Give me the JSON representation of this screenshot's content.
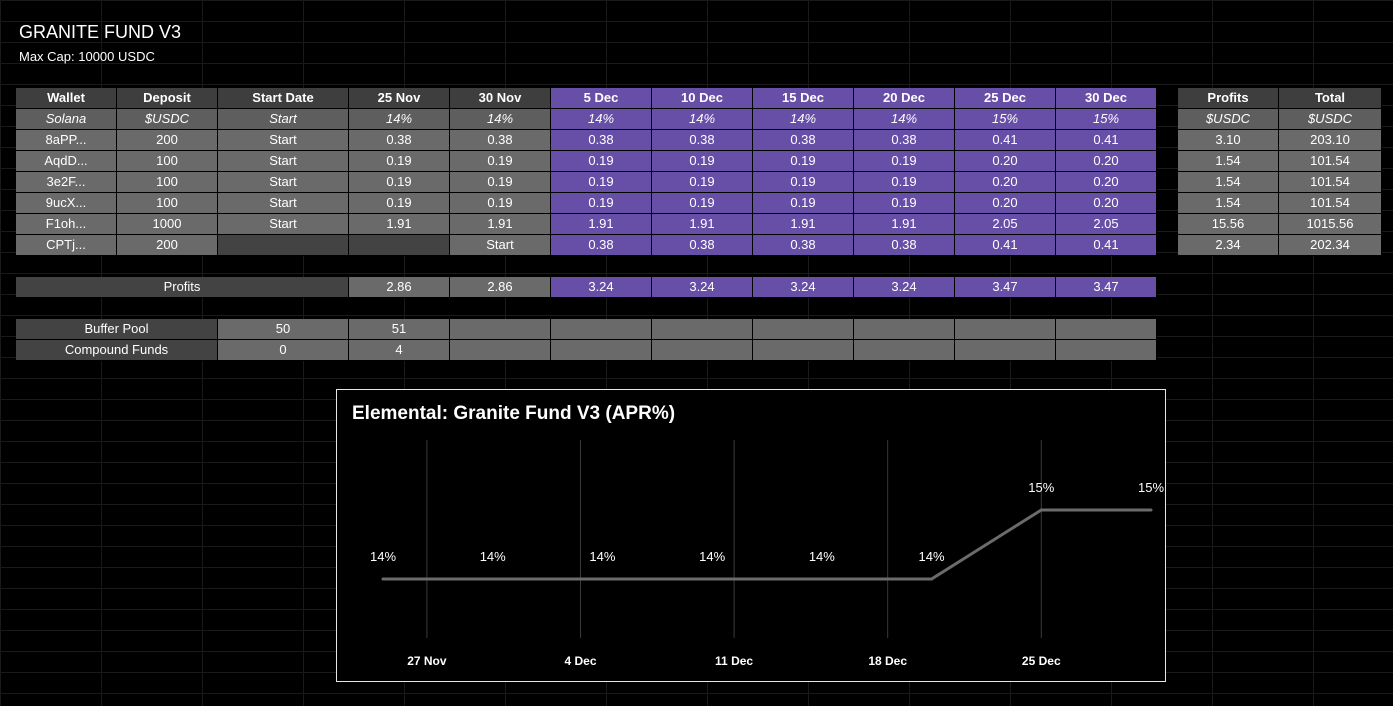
{
  "header": {
    "title": "GRANITE FUND V3",
    "subtitle": "Max Cap: 10000 USDC"
  },
  "table": {
    "columns": [
      "Wallet",
      "Deposit",
      "Start Date",
      "25 Nov",
      "30 Nov",
      "5 Dec",
      "10 Dec",
      "15 Dec",
      "20 Dec",
      "25 Dec",
      "30 Dec"
    ],
    "subheader": [
      "Solana",
      "$USDC",
      "Start",
      "14%",
      "14%",
      "14%",
      "14%",
      "14%",
      "14%",
      "15%",
      "15%"
    ],
    "rows": [
      [
        "8aPP...",
        "200",
        "Start",
        "0.38",
        "0.38",
        "0.38",
        "0.38",
        "0.38",
        "0.38",
        "0.41",
        "0.41"
      ],
      [
        "AqdD...",
        "100",
        "Start",
        "0.19",
        "0.19",
        "0.19",
        "0.19",
        "0.19",
        "0.19",
        "0.20",
        "0.20"
      ],
      [
        "3e2F...",
        "100",
        "Start",
        "0.19",
        "0.19",
        "0.19",
        "0.19",
        "0.19",
        "0.19",
        "0.20",
        "0.20"
      ],
      [
        "9ucX...",
        "100",
        "Start",
        "0.19",
        "0.19",
        "0.19",
        "0.19",
        "0.19",
        "0.19",
        "0.20",
        "0.20"
      ],
      [
        "F1oh...",
        "1000",
        "Start",
        "1.91",
        "1.91",
        "1.91",
        "1.91",
        "1.91",
        "1.91",
        "2.05",
        "2.05"
      ],
      [
        "CPTj...",
        "200",
        "",
        "",
        "Start",
        "0.38",
        "0.38",
        "0.38",
        "0.38",
        "0.41",
        "0.41"
      ]
    ],
    "profits_label": "Profits",
    "profits_values": [
      "2.86",
      "2.86",
      "3.24",
      "3.24",
      "3.24",
      "3.24",
      "3.47",
      "3.47"
    ],
    "buffer_pool": {
      "label": "Buffer Pool",
      "values": [
        "50",
        "51"
      ]
    },
    "compound_funds": {
      "label": "Compound Funds",
      "values": [
        "0",
        "4"
      ]
    }
  },
  "summary": {
    "columns": [
      "Profits",
      "Total"
    ],
    "subheader": [
      "$USDC",
      "$USDC"
    ],
    "rows": [
      [
        "3.10",
        "203.10"
      ],
      [
        "1.54",
        "101.54"
      ],
      [
        "1.54",
        "101.54"
      ],
      [
        "1.54",
        "101.54"
      ],
      [
        "15.56",
        "1015.56"
      ],
      [
        "2.34",
        "202.34"
      ]
    ]
  },
  "chart_data": {
    "type": "line",
    "title": "Elemental: Granite Fund V3 (APR%)",
    "x": [
      "2023-11-25",
      "2023-11-30",
      "2023-12-05",
      "2023-12-10",
      "2023-12-15",
      "2023-12-20",
      "2023-12-25",
      "2023-12-30"
    ],
    "series": [
      {
        "values": [
          14,
          14,
          14,
          14,
          14,
          14,
          15,
          15
        ]
      }
    ],
    "data_labels": [
      "14%",
      "14%",
      "14%",
      "14%",
      "14%",
      "14%",
      "15%",
      "15%"
    ],
    "x_ticks": [
      "27 Nov",
      "4 Dec",
      "11 Dec",
      "18 Dec",
      "25 Dec"
    ],
    "x_tick_dates": [
      "2023-11-27",
      "2023-12-04",
      "2023-12-11",
      "2023-12-18",
      "2023-12-25"
    ],
    "grid": "vertical",
    "line_color": "#6b6b6b"
  }
}
